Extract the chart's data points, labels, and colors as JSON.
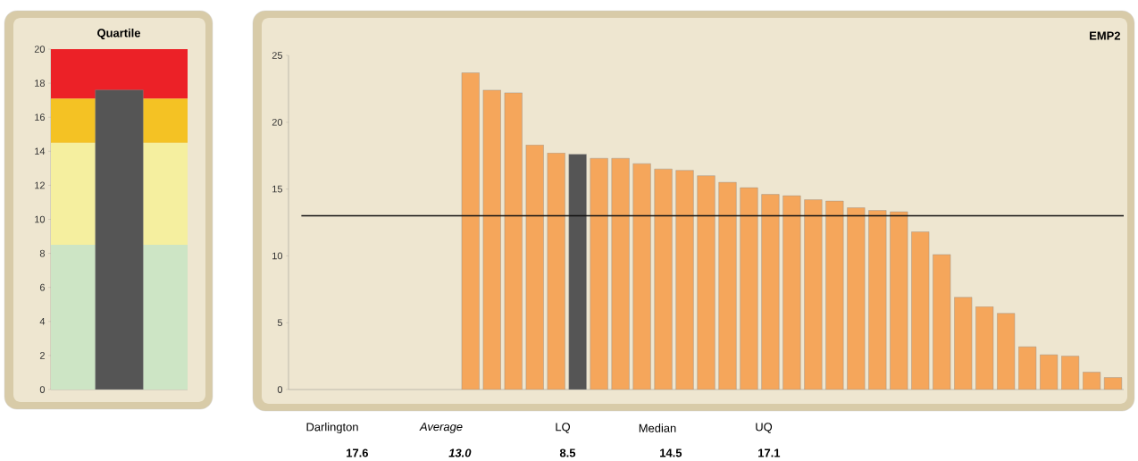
{
  "chart_data": [
    {
      "type": "bar",
      "title": "Quartile",
      "categories": [
        null
      ],
      "values": [
        17.6
      ],
      "colors": [
        "#555555"
      ],
      "ylim": [
        0,
        20
      ],
      "yticks": [
        0,
        2,
        4,
        6,
        8,
        10,
        12,
        14,
        16,
        18,
        20
      ],
      "bands": [
        {
          "axis": "y",
          "from": 0,
          "to": 8.5,
          "color": "#cde5c5"
        },
        {
          "axis": "y",
          "from": 8.5,
          "to": 14.5,
          "color": "#f5ef9f"
        },
        {
          "axis": "y",
          "from": 14.5,
          "to": 17.1,
          "color": "#f4c224"
        },
        {
          "axis": "y",
          "from": 17.1,
          "to": 20,
          "color": "#ec2127"
        }
      ]
    },
    {
      "type": "bar",
      "title": "EMP2",
      "categories": [
        null,
        null,
        null,
        null,
        null,
        null,
        null,
        null,
        null,
        null,
        null,
        null,
        null,
        null,
        null,
        null,
        null,
        null,
        null,
        null,
        null,
        null,
        null,
        null,
        null,
        null,
        null,
        null,
        null,
        null,
        null,
        null,
        null,
        null,
        null,
        null,
        null,
        null,
        null
      ],
      "values": [
        null,
        null,
        null,
        null,
        null,
        null,
        null,
        null,
        23.7,
        22.4,
        22.2,
        18.3,
        17.7,
        17.6,
        17.3,
        17.3,
        16.9,
        16.5,
        16.4,
        16.0,
        15.5,
        15.1,
        14.6,
        14.5,
        14.2,
        14.1,
        13.6,
        13.4,
        13.3,
        11.8,
        10.1,
        6.9,
        6.2,
        5.7,
        3.2,
        2.6,
        2.5,
        1.3,
        0.9
      ],
      "colors": [
        "#f5a65b",
        "#f5a65b",
        "#f5a65b",
        "#f5a65b",
        "#f5a65b",
        "#f5a65b",
        "#f5a65b",
        "#f5a65b",
        "#f5a65b",
        "#f5a65b",
        "#f5a65b",
        "#f5a65b",
        "#f5a65b",
        "#555555",
        "#f5a65b",
        "#f5a65b",
        "#f5a65b",
        "#f5a65b",
        "#f5a65b",
        "#f5a65b",
        "#f5a65b",
        "#f5a65b",
        "#f5a65b",
        "#f5a65b",
        "#f5a65b",
        "#f5a65b",
        "#f5a65b",
        "#f5a65b",
        "#f5a65b",
        "#f5a65b",
        "#f5a65b",
        "#f5a65b",
        "#f5a65b",
        "#f5a65b",
        "#f5a65b",
        "#f5a65b",
        "#f5a65b",
        "#f5a65b",
        "#f5a65b"
      ],
      "ylim": [
        0,
        25
      ],
      "yticks": [
        0,
        5,
        10,
        15,
        20,
        25
      ],
      "ref_lines": [
        {
          "axis": "y",
          "value": 13.0,
          "color": "#111111"
        }
      ],
      "annotations": [
        "Darlington",
        "Average",
        "LQ",
        "Median",
        "UQ",
        "17.6",
        "13.0",
        "8.5",
        "14.5",
        "17.1"
      ]
    }
  ]
}
